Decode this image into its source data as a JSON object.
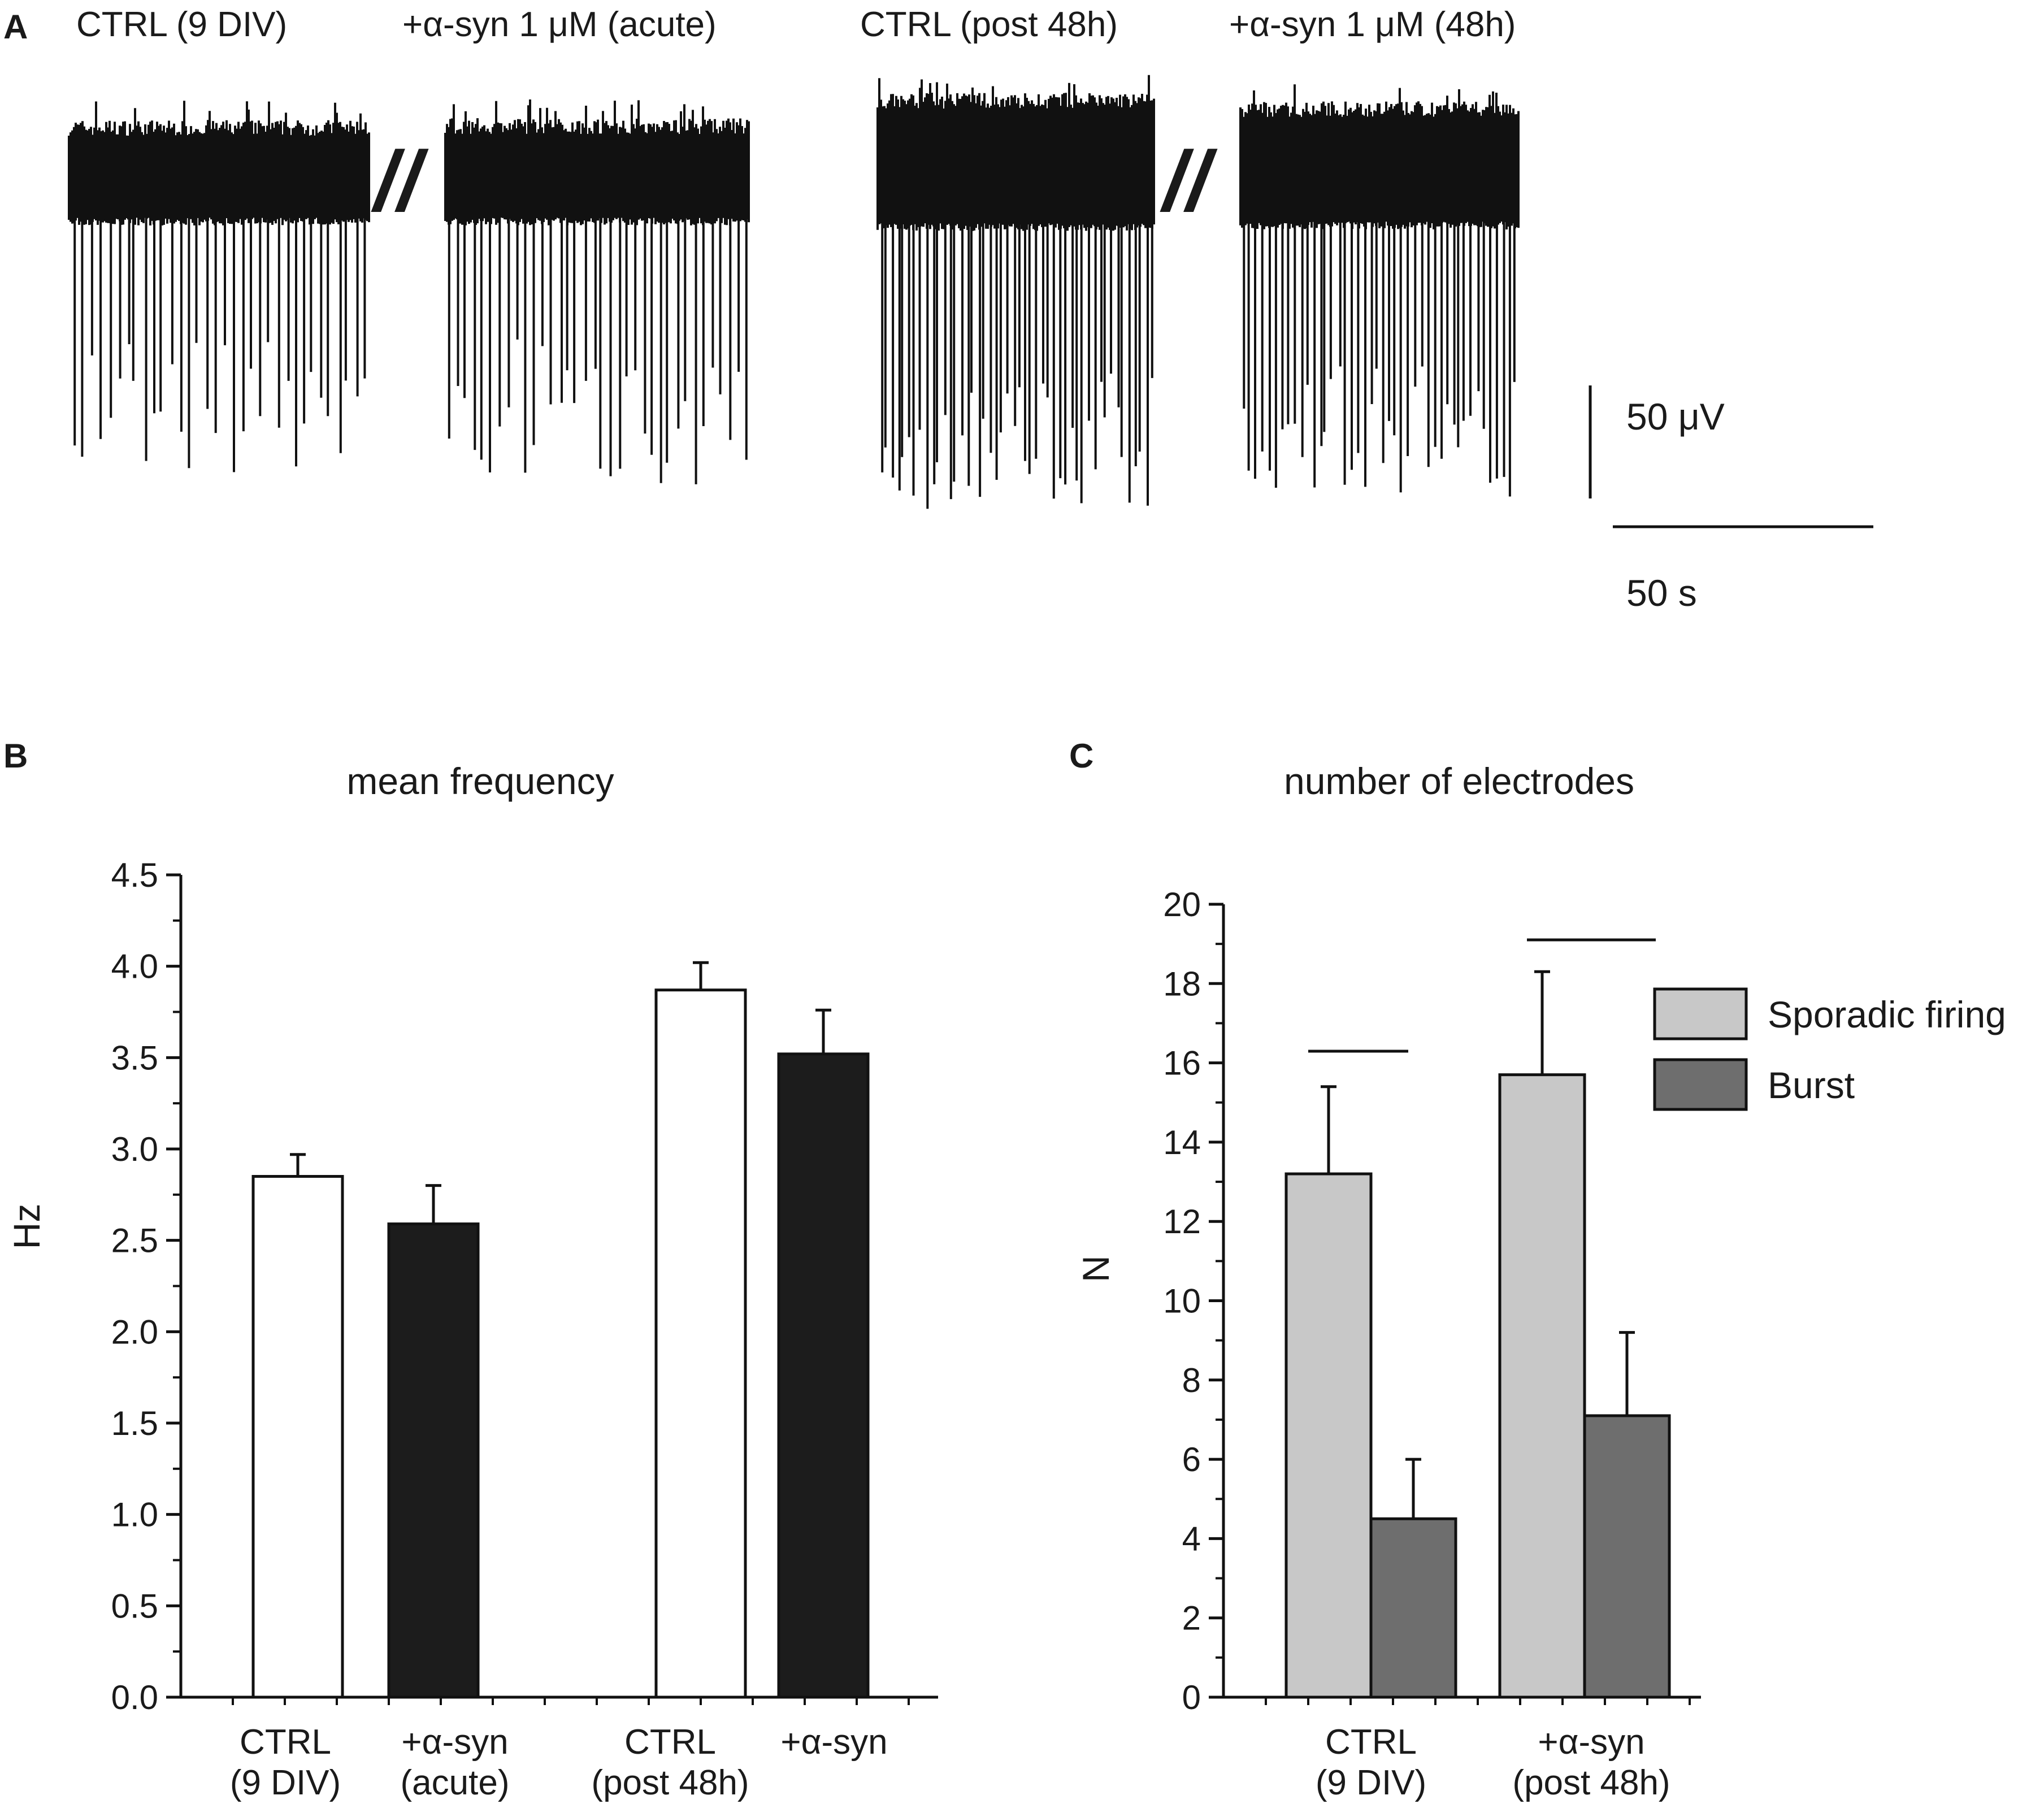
{
  "panel_a": {
    "letter": "A",
    "headers": [
      "CTRL  (9 DIV)",
      "+α-syn 1 μM (acute)",
      "CTRL (post 48h)",
      "+α-syn 1 μM (48h)"
    ],
    "break_mark": "//",
    "scale_bar_voltage": "50 μV",
    "scale_bar_time": "50 s"
  },
  "chart_data": [
    {
      "panel": "B",
      "type": "bar",
      "title": "mean frequency",
      "xlabel": "",
      "ylabel": "Hz",
      "ylim": [
        0,
        4.5
      ],
      "yticks": [
        "0.0",
        "0.5",
        "1.0",
        "1.5",
        "2.0",
        "2.5",
        "3.0",
        "3.5",
        "4.0",
        "4.5"
      ],
      "categories": [
        [
          "CTRL",
          "(9 DIV)"
        ],
        [
          "+α-syn",
          "(acute)"
        ],
        [
          "CTRL",
          "(post 48h)"
        ],
        [
          "+α-syn",
          ""
        ]
      ],
      "values": [
        2.85,
        2.59,
        3.87,
        3.52
      ],
      "errors": [
        0.12,
        0.21,
        0.15,
        0.24
      ],
      "fills": [
        "#ffffff",
        "#1c1c1c",
        "#ffffff",
        "#1c1c1c"
      ],
      "grid": false,
      "legend": "none"
    },
    {
      "panel": "C",
      "type": "bar",
      "title": "number of electrodes",
      "xlabel": "",
      "ylabel": "N",
      "ylim": [
        0,
        20
      ],
      "yticks": [
        "0",
        "2",
        "4",
        "6",
        "8",
        "10",
        "12",
        "14",
        "16",
        "18",
        "20"
      ],
      "categories": [
        [
          "CTRL",
          "(9 DIV)"
        ],
        [
          "+α-syn",
          "(post 48h)"
        ]
      ],
      "series": [
        {
          "name": "Sporadic firing",
          "color": "#c8c8c8",
          "values": [
            13.2,
            15.7
          ],
          "errors": [
            2.2,
            2.6
          ]
        },
        {
          "name": "Burst",
          "color": "#6e6e6e",
          "values": [
            4.5,
            7.1
          ],
          "errors": [
            1.5,
            2.1
          ]
        }
      ],
      "grid": false,
      "legend": "top-right"
    }
  ]
}
